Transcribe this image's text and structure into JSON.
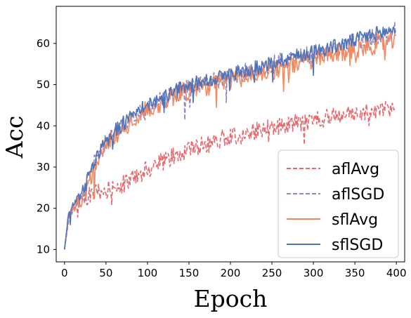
{
  "chart_data": {
    "type": "line",
    "xlabel": "Epoch",
    "ylabel": "Acc",
    "xlim": [
      -10,
      410
    ],
    "ylim": [
      7,
      69
    ],
    "xticks": [
      0,
      50,
      100,
      150,
      200,
      250,
      300,
      350,
      400
    ],
    "yticks": [
      10,
      20,
      30,
      40,
      50,
      60
    ],
    "grid": false,
    "legend_position": "bottom-right",
    "series": [
      {
        "name": "aflAvg",
        "color": "#e8686e",
        "style": "dashed",
        "x": [
          0,
          5,
          10,
          15,
          20,
          30,
          40,
          50,
          60,
          70,
          80,
          90,
          100,
          110,
          120,
          130,
          140,
          150,
          160,
          170,
          180,
          190,
          200,
          210,
          220,
          230,
          240,
          250,
          260,
          270,
          280,
          290,
          300,
          310,
          320,
          330,
          340,
          350,
          360,
          370,
          380,
          390,
          399
        ],
        "y": [
          10,
          18,
          20,
          21,
          22,
          23,
          24,
          24.5,
          25,
          26,
          27,
          28,
          29.5,
          30.5,
          31.5,
          32.5,
          33.5,
          34.5,
          35,
          35.5,
          36,
          37,
          37.5,
          37.8,
          38.2,
          38.6,
          39,
          39.5,
          40,
          40.3,
          40.6,
          41,
          41.3,
          41.6,
          42,
          42.3,
          42.6,
          43,
          43.3,
          43.6,
          44,
          44.3,
          44.5
        ],
        "noise": 2.2
      },
      {
        "name": "aflSGD",
        "color": "#9188c2",
        "style": "dashed",
        "x": [
          0,
          5,
          10,
          15,
          20,
          30,
          40,
          50,
          60,
          70,
          80,
          90,
          100,
          110,
          120,
          130,
          140,
          150,
          160,
          170,
          180,
          190,
          200,
          210,
          220,
          230,
          240,
          250,
          260,
          270,
          280,
          290,
          300,
          310,
          320,
          330,
          340,
          350,
          360,
          370,
          380,
          390,
          399
        ],
        "y": [
          10,
          17,
          20,
          21,
          22,
          28,
          33,
          36,
          38,
          40,
          42,
          43,
          44,
          45.5,
          46.5,
          47.5,
          48.5,
          49,
          50,
          50.5,
          51,
          51.5,
          52,
          52.5,
          53,
          53.5,
          54,
          54.8,
          55.5,
          56,
          56.5,
          57,
          57.5,
          58,
          58.5,
          59,
          59.5,
          60.3,
          61,
          61.5,
          62,
          62.5,
          63
        ],
        "noise": 2.3
      },
      {
        "name": "sflAvg",
        "color": "#f4895f",
        "style": "solid",
        "x": [
          0,
          5,
          10,
          15,
          20,
          30,
          40,
          50,
          60,
          70,
          80,
          90,
          100,
          110,
          120,
          130,
          140,
          150,
          160,
          170,
          180,
          190,
          200,
          210,
          220,
          230,
          240,
          250,
          260,
          270,
          280,
          290,
          300,
          310,
          320,
          330,
          340,
          350,
          360,
          370,
          380,
          390,
          399
        ],
        "y": [
          10,
          18,
          20,
          21,
          21.5,
          27,
          32,
          35,
          37.5,
          39.5,
          41,
          42.5,
          44,
          45,
          46,
          47,
          48,
          48.5,
          49,
          49.5,
          50,
          50.5,
          51,
          51.5,
          52,
          52.5,
          53,
          53.5,
          54,
          54.5,
          55,
          55.5,
          56,
          56.5,
          57,
          57.5,
          58,
          58.5,
          59,
          59.5,
          60,
          60.3,
          60.5
        ],
        "noise": 2.4
      },
      {
        "name": "sflSGD",
        "color": "#4f72b8",
        "style": "solid",
        "x": [
          0,
          5,
          10,
          15,
          20,
          30,
          40,
          50,
          60,
          70,
          80,
          90,
          100,
          110,
          120,
          130,
          140,
          150,
          160,
          170,
          180,
          190,
          200,
          210,
          220,
          230,
          240,
          250,
          260,
          270,
          280,
          290,
          300,
          310,
          320,
          330,
          340,
          350,
          360,
          370,
          380,
          390,
          399
        ],
        "y": [
          10,
          19,
          21,
          22,
          23,
          28,
          33,
          36,
          38.5,
          40.5,
          42,
          43.5,
          45,
          46,
          47,
          48,
          49,
          49.5,
          50.5,
          51,
          51.5,
          52,
          52.5,
          53,
          53.5,
          54,
          54.5,
          55.3,
          56,
          56.5,
          57,
          57.5,
          58,
          58.5,
          59,
          59.5,
          60,
          60.8,
          61.5,
          62,
          62.5,
          63,
          63.5
        ],
        "noise": 1.8
      }
    ]
  }
}
